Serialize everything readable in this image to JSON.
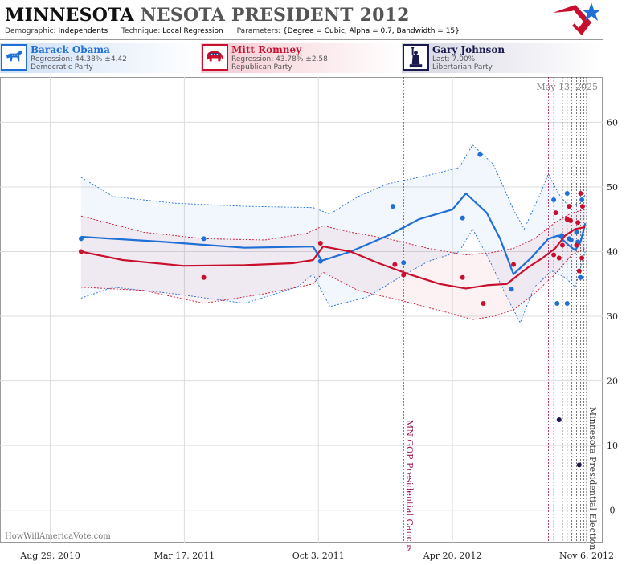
{
  "header": {
    "title_state": "MINNESOTA",
    "title_rest": "NESOTA PRESIDENT 2012",
    "demographic_label": "Demographic:",
    "demographic_value": "Independents",
    "technique_label": "Technique:",
    "technique_value": "Local Regression",
    "parameters_label": "Parameters:",
    "parameters_value": "{Degree = Cubic, Alpha = 0.7, Bandwidth = 15}"
  },
  "candidates": [
    {
      "name": "Barack Obama",
      "line1": "Regression: 44.38% ±4.42",
      "line2": "Democratic Party",
      "color": "#1f6fd6",
      "icon": "donkey-icon"
    },
    {
      "name": "Mitt Romney",
      "line1": "Regression: 43.78% ±2.58",
      "line2": "Republican Party",
      "color": "#c8102e",
      "icon": "elephant-icon"
    },
    {
      "name": "Gary Johnson",
      "line1": "Last: 7.00%",
      "line2": "Libertarian Party",
      "color": "#1a1a4e",
      "icon": "statue-of-liberty-icon"
    }
  ],
  "colors": {
    "obama": "#1f6fd6",
    "romney": "#c8102e",
    "johnson": "#1a1a4e",
    "event": "#a0155a",
    "grid": "#dddddd"
  },
  "chart_data": {
    "type": "scatter",
    "date_label": "May 13, 2025",
    "watermark": "HowWillAmericaVote.com",
    "x_ticks": [
      {
        "date": "2010-08-29",
        "label": "Aug 29, 2010"
      },
      {
        "date": "2011-03-17",
        "label": "Mar 17, 2011"
      },
      {
        "date": "2011-10-03",
        "label": "Oct 3, 2011"
      },
      {
        "date": "2012-04-20",
        "label": "Apr 20, 2012"
      },
      {
        "date": "2012-11-06",
        "label": "Nov 6, 2012"
      }
    ],
    "xlim": [
      "2010-06-15",
      "2012-11-30"
    ],
    "ylim": [
      -5,
      67
    ],
    "y_ticks": [
      0,
      10,
      20,
      30,
      40,
      50,
      60
    ],
    "events": [
      {
        "date": "2012-02-07",
        "label": "MN GOP Presidential Caucus"
      },
      {
        "date": "2012-11-06",
        "label": "Minnesota Presidential Election"
      }
    ],
    "poll_dates": [
      "2012-09-10",
      "2012-09-18",
      "2012-10-01",
      "2012-10-08",
      "2012-10-15",
      "2012-10-22",
      "2012-10-28",
      "2012-11-02"
    ],
    "series": [
      {
        "name": "Barack Obama",
        "points": [
          {
            "date": "2010-10-14",
            "value": 42
          },
          {
            "date": "2011-04-15",
            "value": 42
          },
          {
            "date": "2011-10-06",
            "value": 38.5
          },
          {
            "date": "2012-01-22",
            "value": 47
          },
          {
            "date": "2012-02-07",
            "value": 38.3
          },
          {
            "date": "2012-05-05",
            "value": 45.2
          },
          {
            "date": "2012-05-31",
            "value": 55
          },
          {
            "date": "2012-07-17",
            "value": 34.2
          },
          {
            "date": "2012-09-18",
            "value": 48
          },
          {
            "date": "2012-09-23",
            "value": 32
          },
          {
            "date": "2012-09-30",
            "value": 42.5
          },
          {
            "date": "2012-10-08",
            "value": 32
          },
          {
            "date": "2012-10-08",
            "value": 49
          },
          {
            "date": "2012-10-11",
            "value": 42
          },
          {
            "date": "2012-10-14",
            "value": 41.8
          },
          {
            "date": "2012-10-22",
            "value": 43
          },
          {
            "date": "2012-10-24",
            "value": 41.5
          },
          {
            "date": "2012-10-28",
            "value": 36
          },
          {
            "date": "2012-10-30",
            "value": 48
          }
        ],
        "trend": [
          {
            "date": "2010-10-14",
            "value": 42.3
          },
          {
            "date": "2011-02-15",
            "value": 41.5
          },
          {
            "date": "2011-06-15",
            "value": 40.6
          },
          {
            "date": "2011-09-25",
            "value": 40.8
          },
          {
            "date": "2011-10-08",
            "value": 38.6
          },
          {
            "date": "2011-11-20",
            "value": 40.0
          },
          {
            "date": "2012-01-15",
            "value": 42.5
          },
          {
            "date": "2012-03-01",
            "value": 45.0
          },
          {
            "date": "2012-04-20",
            "value": 46.5
          },
          {
            "date": "2012-05-10",
            "value": 49.0
          },
          {
            "date": "2012-06-10",
            "value": 46.0
          },
          {
            "date": "2012-06-30",
            "value": 42.0
          },
          {
            "date": "2012-07-20",
            "value": 36.5
          },
          {
            "date": "2012-08-15",
            "value": 39.0
          },
          {
            "date": "2012-09-10",
            "value": 42.0
          },
          {
            "date": "2012-09-25",
            "value": 42.5
          },
          {
            "date": "2012-10-10",
            "value": 41.0
          },
          {
            "date": "2012-10-20",
            "value": 40.2
          },
          {
            "date": "2012-10-28",
            "value": 41.5
          },
          {
            "date": "2012-11-04",
            "value": 44.4
          }
        ],
        "band_upper": [
          {
            "date": "2010-10-14",
            "value": 51.5
          },
          {
            "date": "2010-12-01",
            "value": 48.5
          },
          {
            "date": "2011-03-01",
            "value": 47.5
          },
          {
            "date": "2011-06-15",
            "value": 47.0
          },
          {
            "date": "2011-09-25",
            "value": 46.8
          },
          {
            "date": "2011-10-20",
            "value": 45.8
          },
          {
            "date": "2011-12-01",
            "value": 48.5
          },
          {
            "date": "2012-01-15",
            "value": 50.5
          },
          {
            "date": "2012-03-15",
            "value": 51.8
          },
          {
            "date": "2012-04-30",
            "value": 53.0
          },
          {
            "date": "2012-05-20",
            "value": 56.5
          },
          {
            "date": "2012-06-20",
            "value": 53.5
          },
          {
            "date": "2012-07-20",
            "value": 46.5
          },
          {
            "date": "2012-08-05",
            "value": 43.5
          },
          {
            "date": "2012-08-25",
            "value": 48.0
          },
          {
            "date": "2012-09-10",
            "value": 52.0
          },
          {
            "date": "2012-09-25",
            "value": 49.0
          },
          {
            "date": "2012-10-10",
            "value": 47.0
          },
          {
            "date": "2012-10-28",
            "value": 47.5
          },
          {
            "date": "2012-11-04",
            "value": 48.8
          }
        ],
        "band_lower": [
          {
            "date": "2010-10-14",
            "value": 32.8
          },
          {
            "date": "2010-12-01",
            "value": 34.5
          },
          {
            "date": "2011-03-01",
            "value": 33.5
          },
          {
            "date": "2011-06-15",
            "value": 32.0
          },
          {
            "date": "2011-09-01",
            "value": 34.5
          },
          {
            "date": "2011-09-25",
            "value": 36.5
          },
          {
            "date": "2011-10-20",
            "value": 31.5
          },
          {
            "date": "2011-12-15",
            "value": 33.0
          },
          {
            "date": "2012-02-01",
            "value": 36.0
          },
          {
            "date": "2012-03-15",
            "value": 38.5
          },
          {
            "date": "2012-04-30",
            "value": 40.0
          },
          {
            "date": "2012-05-20",
            "value": 43.5
          },
          {
            "date": "2012-06-15",
            "value": 38.5
          },
          {
            "date": "2012-07-10",
            "value": 33.0
          },
          {
            "date": "2012-07-30",
            "value": 29.0
          },
          {
            "date": "2012-08-20",
            "value": 34.5
          },
          {
            "date": "2012-09-15",
            "value": 37.0
          },
          {
            "date": "2012-10-05",
            "value": 36.0
          },
          {
            "date": "2012-10-20",
            "value": 34.5
          },
          {
            "date": "2012-11-04",
            "value": 40.0
          }
        ]
      },
      {
        "name": "Mitt Romney",
        "points": [
          {
            "date": "2010-10-14",
            "value": 40
          },
          {
            "date": "2011-04-15",
            "value": 36
          },
          {
            "date": "2011-10-06",
            "value": 41.3
          },
          {
            "date": "2012-01-25",
            "value": 38
          },
          {
            "date": "2012-02-07",
            "value": 36.4
          },
          {
            "date": "2012-05-05",
            "value": 36
          },
          {
            "date": "2012-06-05",
            "value": 32
          },
          {
            "date": "2012-07-20",
            "value": 38
          },
          {
            "date": "2012-09-18",
            "value": 39.5
          },
          {
            "date": "2012-09-21",
            "value": 46
          },
          {
            "date": "2012-09-26",
            "value": 39
          },
          {
            "date": "2012-10-01",
            "value": 41
          },
          {
            "date": "2012-10-08",
            "value": 45
          },
          {
            "date": "2012-10-11",
            "value": 47
          },
          {
            "date": "2012-10-13",
            "value": 44.8
          },
          {
            "date": "2012-10-22",
            "value": 41
          },
          {
            "date": "2012-10-24",
            "value": 44.5
          },
          {
            "date": "2012-10-26",
            "value": 37
          },
          {
            "date": "2012-10-28",
            "value": 49
          },
          {
            "date": "2012-10-30",
            "value": 39
          },
          {
            "date": "2012-10-31",
            "value": 47
          }
        ],
        "trend": [
          {
            "date": "2010-10-14",
            "value": 40.0
          },
          {
            "date": "2010-12-15",
            "value": 38.7
          },
          {
            "date": "2011-03-15",
            "value": 37.8
          },
          {
            "date": "2011-06-15",
            "value": 37.9
          },
          {
            "date": "2011-08-25",
            "value": 38.2
          },
          {
            "date": "2011-09-25",
            "value": 38.7
          },
          {
            "date": "2011-10-10",
            "value": 40.8
          },
          {
            "date": "2011-11-20",
            "value": 40.0
          },
          {
            "date": "2012-01-01",
            "value": 38.2
          },
          {
            "date": "2012-02-15",
            "value": 36.5
          },
          {
            "date": "2012-04-01",
            "value": 35.0
          },
          {
            "date": "2012-05-10",
            "value": 34.3
          },
          {
            "date": "2012-06-10",
            "value": 34.8
          },
          {
            "date": "2012-07-10",
            "value": 35.0
          },
          {
            "date": "2012-08-10",
            "value": 37.5
          },
          {
            "date": "2012-09-01",
            "value": 39.0
          },
          {
            "date": "2012-09-20",
            "value": 40.5
          },
          {
            "date": "2012-10-05",
            "value": 42.5
          },
          {
            "date": "2012-10-20",
            "value": 43.5
          },
          {
            "date": "2012-11-04",
            "value": 43.8
          }
        ],
        "band_upper": [
          {
            "date": "2010-10-14",
            "value": 45.5
          },
          {
            "date": "2011-01-15",
            "value": 43.0
          },
          {
            "date": "2011-04-15",
            "value": 42.0
          },
          {
            "date": "2011-07-15",
            "value": 41.8
          },
          {
            "date": "2011-09-15",
            "value": 42.8
          },
          {
            "date": "2011-10-10",
            "value": 44.0
          },
          {
            "date": "2011-11-20",
            "value": 43.0
          },
          {
            "date": "2012-01-15",
            "value": 42.0
          },
          {
            "date": "2012-03-15",
            "value": 40.5
          },
          {
            "date": "2012-05-10",
            "value": 39.5
          },
          {
            "date": "2012-06-15",
            "value": 39.8
          },
          {
            "date": "2012-07-20",
            "value": 40.5
          },
          {
            "date": "2012-08-20",
            "value": 42.0
          },
          {
            "date": "2012-09-20",
            "value": 44.5
          },
          {
            "date": "2012-10-15",
            "value": 46.0
          },
          {
            "date": "2012-11-04",
            "value": 46.5
          }
        ],
        "band_lower": [
          {
            "date": "2010-10-14",
            "value": 34.5
          },
          {
            "date": "2011-01-15",
            "value": 34.0
          },
          {
            "date": "2011-04-15",
            "value": 32.0
          },
          {
            "date": "2011-07-15",
            "value": 33.5
          },
          {
            "date": "2011-09-25",
            "value": 35.0
          },
          {
            "date": "2011-10-10",
            "value": 36.8
          },
          {
            "date": "2011-12-01",
            "value": 34.0
          },
          {
            "date": "2012-02-01",
            "value": 32.5
          },
          {
            "date": "2012-04-15",
            "value": 30.5
          },
          {
            "date": "2012-05-20",
            "value": 29.5
          },
          {
            "date": "2012-06-20",
            "value": 30.0
          },
          {
            "date": "2012-07-20",
            "value": 31.0
          },
          {
            "date": "2012-08-20",
            "value": 33.5
          },
          {
            "date": "2012-09-20",
            "value": 36.5
          },
          {
            "date": "2012-10-15",
            "value": 39.5
          },
          {
            "date": "2012-11-04",
            "value": 40.5
          }
        ]
      },
      {
        "name": "Gary Johnson",
        "points": [
          {
            "date": "2012-09-26",
            "value": 14
          },
          {
            "date": "2012-10-26",
            "value": 7
          }
        ]
      }
    ]
  }
}
